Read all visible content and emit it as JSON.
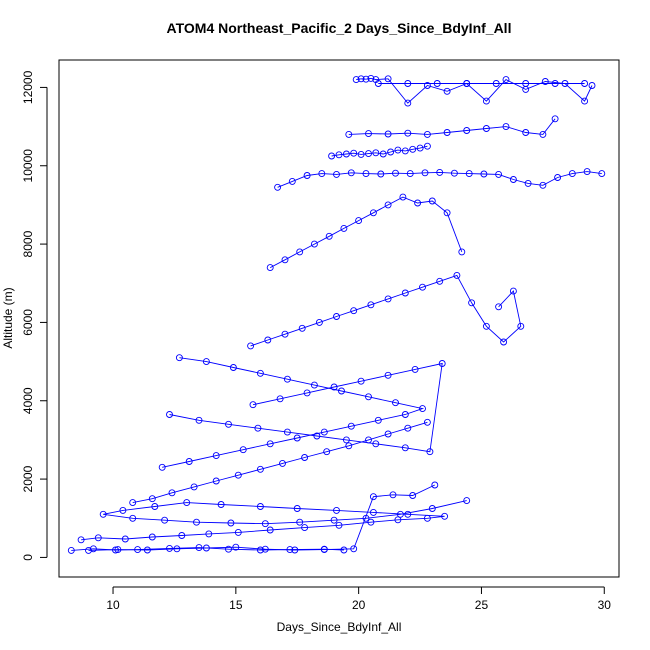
{
  "chart_data": {
    "type": "scatter",
    "title": "ATOM4 Northeast_Pacific_2 Days_Since_BdyInf_All",
    "xlabel": "Days_Since_BdyInf_All",
    "ylabel": "Altitude (m)",
    "xlim": [
      7.8,
      30.6
    ],
    "ylim": [
      -500,
      12700
    ],
    "xticks": [
      "10",
      "15",
      "20",
      "25",
      "30"
    ],
    "yticks": [
      "0",
      "2000",
      "4000",
      "6000",
      "8000",
      "10000",
      "12000"
    ],
    "grid": false,
    "legend": "none",
    "series_color": "#0000ff",
    "marker": "open-circle",
    "series": [
      {
        "x": [
          8.3,
          9.2,
          10.1,
          11.0,
          12.3,
          13.5,
          14.7,
          16.0,
          17.2,
          18.6,
          19.4
        ],
        "y": [
          180,
          220,
          190,
          200,
          230,
          250,
          210,
          190,
          200,
          210,
          190
        ]
      },
      {
        "x": [
          8.7,
          9.4,
          10.5,
          11.6,
          12.8,
          13.9,
          15.1,
          16.4,
          17.8,
          19.2,
          20.5,
          21.6,
          22.8,
          23.5,
          22.0,
          20.6,
          19.1,
          17.5,
          16.0,
          14.4,
          13.0,
          11.7,
          10.4,
          9.6,
          10.8,
          12.1,
          13.4,
          14.8,
          16.2,
          17.6,
          19.0,
          20.3,
          21.7,
          23.0,
          24.4
        ],
        "y": [
          450,
          500,
          470,
          520,
          560,
          600,
          640,
          700,
          760,
          820,
          900,
          960,
          1000,
          1050,
          1100,
          1150,
          1200,
          1250,
          1300,
          1350,
          1400,
          1300,
          1200,
          1100,
          1000,
          950,
          900,
          880,
          860,
          900,
          950,
          1000,
          1100,
          1250,
          1450
        ]
      },
      {
        "x": [
          9.0,
          10.2,
          11.4,
          12.6,
          13.8,
          15.0,
          16.2,
          17.4,
          18.6,
          19.8,
          20.6,
          21.4,
          22.2,
          23.1
        ],
        "y": [
          180,
          200,
          190,
          220,
          240,
          260,
          210,
          190,
          200,
          220,
          1550,
          1600,
          1580,
          1850
        ]
      },
      {
        "x": [
          10.8,
          11.6,
          12.4,
          13.3,
          14.2,
          15.1,
          16.0,
          16.9,
          17.8,
          18.7,
          19.6,
          20.4,
          21.2,
          22.0,
          22.8
        ],
        "y": [
          1400,
          1500,
          1650,
          1800,
          1950,
          2100,
          2250,
          2400,
          2550,
          2700,
          2850,
          3000,
          3150,
          3300,
          3450
        ]
      },
      {
        "x": [
          12.0,
          13.1,
          14.2,
          15.3,
          16.4,
          17.5,
          18.6,
          19.7,
          20.8,
          21.9,
          22.6,
          21.5,
          20.4,
          19.3,
          18.2,
          17.1,
          16.0,
          14.9,
          13.8,
          12.7
        ],
        "y": [
          2300,
          2450,
          2600,
          2750,
          2900,
          3050,
          3200,
          3350,
          3500,
          3650,
          3800,
          3950,
          4100,
          4250,
          4400,
          4550,
          4700,
          4850,
          5000,
          5100
        ]
      },
      {
        "x": [
          12.3,
          13.5,
          14.7,
          15.9,
          17.1,
          18.3,
          19.5,
          20.7,
          21.9,
          22.9,
          23.4,
          22.3,
          21.2,
          20.1,
          19.0,
          17.9,
          16.8,
          15.7
        ],
        "y": [
          3650,
          3500,
          3400,
          3300,
          3200,
          3100,
          3000,
          2900,
          2800,
          2700,
          4950,
          4800,
          4650,
          4500,
          4350,
          4200,
          4050,
          3900
        ]
      },
      {
        "x": [
          15.6,
          16.3,
          17.0,
          17.7,
          18.4,
          19.1,
          19.8,
          20.5,
          21.2,
          21.9,
          22.6,
          23.3,
          24.0,
          24.6,
          25.2,
          25.9,
          26.6,
          26.3,
          25.7
        ],
        "y": [
          5400,
          5550,
          5700,
          5850,
          6000,
          6150,
          6300,
          6450,
          6600,
          6750,
          6900,
          7050,
          7200,
          6500,
          5900,
          5500,
          5900,
          6800,
          6400
        ]
      },
      {
        "x": [
          16.4,
          17.0,
          17.6,
          18.2,
          18.8,
          19.4,
          20.0,
          20.6,
          21.2,
          21.8,
          22.4,
          23.0,
          23.6,
          24.2
        ],
        "y": [
          7400,
          7600,
          7800,
          8000,
          8200,
          8400,
          8600,
          8800,
          9000,
          9200,
          9050,
          9100,
          8800,
          7800
        ]
      },
      {
        "x": [
          16.7,
          17.3,
          17.9,
          18.5,
          19.1,
          19.7,
          20.3,
          20.9,
          21.5,
          22.1,
          22.7,
          23.3,
          23.9,
          24.5,
          25.1,
          25.7,
          26.3,
          26.9,
          27.5,
          28.1,
          28.7,
          29.3,
          29.9
        ],
        "y": [
          9450,
          9600,
          9750,
          9800,
          9780,
          9820,
          9800,
          9790,
          9810,
          9800,
          9820,
          9830,
          9810,
          9800,
          9790,
          9780,
          9650,
          9550,
          9500,
          9700,
          9800,
          9850,
          9800
        ]
      },
      {
        "x": [
          18.9,
          19.2,
          19.5,
          19.8,
          20.1,
          20.4,
          20.7,
          21.0,
          21.3,
          21.6,
          21.9,
          22.2,
          22.5,
          22.8
        ],
        "y": [
          10250,
          10280,
          10300,
          10320,
          10290,
          10310,
          10330,
          10300,
          10350,
          10400,
          10380,
          10420,
          10450,
          10500
        ]
      },
      {
        "x": [
          19.6,
          20.4,
          21.2,
          22.0,
          22.8,
          23.6,
          24.4,
          25.2,
          26.0,
          26.8,
          27.5,
          28.0
        ],
        "y": [
          10800,
          10820,
          10810,
          10830,
          10800,
          10850,
          10900,
          10950,
          11000,
          10850,
          10800,
          11200
        ]
      },
      {
        "x": [
          19.9,
          20.1,
          20.3,
          20.5,
          20.7,
          21.2,
          22.0,
          22.8,
          23.6,
          24.4,
          25.2,
          26.0,
          26.8,
          27.6,
          28.4,
          29.2,
          29.5
        ],
        "y": [
          12200,
          12220,
          12210,
          12230,
          12200,
          12220,
          11600,
          12050,
          11900,
          12100,
          11650,
          12200,
          11950,
          12150,
          12100,
          11650,
          12050
        ]
      },
      {
        "x": [
          20.8,
          22.0,
          23.2,
          24.4,
          25.6,
          26.8,
          28.0,
          29.2
        ],
        "y": [
          12100,
          12100,
          12100,
          12100,
          12100,
          12100,
          12100,
          12100
        ]
      }
    ]
  }
}
